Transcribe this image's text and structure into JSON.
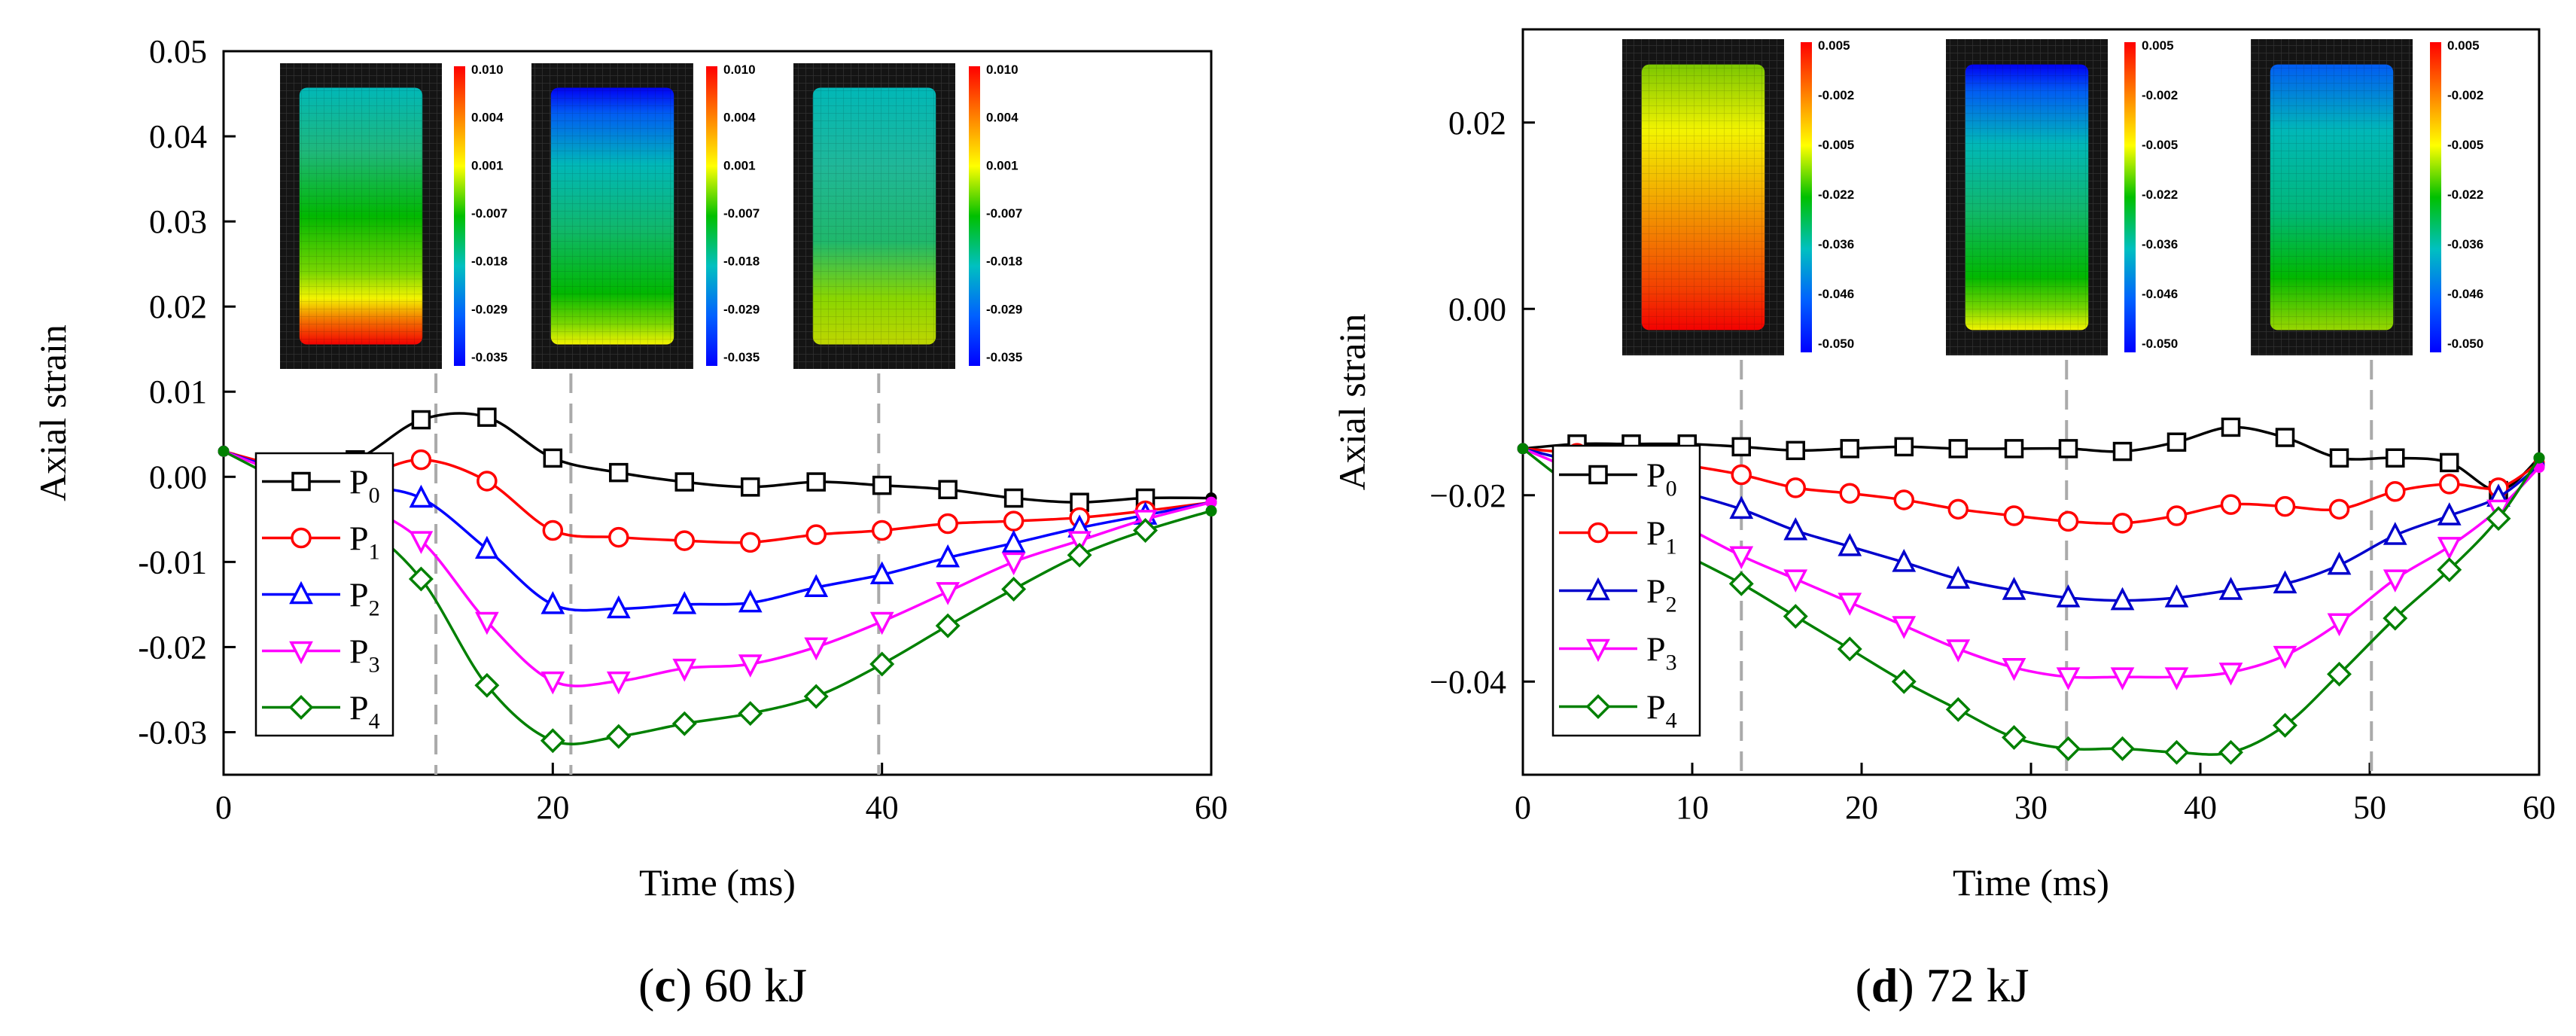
{
  "chart_data": [
    {
      "type": "line",
      "panel": "(c) 60 kJ",
      "caption_letter": "c",
      "caption_text": " 60 kJ",
      "xlabel": "Time (ms)",
      "ylabel": "Axial strain",
      "xlim": [
        0,
        60
      ],
      "ylim": [
        -0.035,
        0.05
      ],
      "xticks": [
        "0",
        "20",
        "40",
        "60"
      ],
      "xtick_values": [
        0,
        20,
        40,
        60
      ],
      "yticks": [
        "0.05",
        "0.04",
        "0.03",
        "0.02",
        "0.01",
        "0.00",
        "-0.01",
        "-0.02",
        "-0.03"
      ],
      "ytick_values": [
        0.05,
        0.04,
        0.03,
        0.02,
        0.01,
        0.0,
        -0.01,
        -0.02,
        -0.03
      ],
      "marker_lines_x": [
        12.9,
        21.1,
        39.8
      ],
      "series": [
        {
          "name": "P0",
          "base": "P",
          "sub": "0",
          "color": "#000000",
          "marker": "square",
          "x": [
            0,
            4,
            8,
            12,
            16,
            20,
            24,
            28,
            32,
            36,
            40,
            44,
            48,
            52,
            56,
            60
          ],
          "y": [
            0.003,
            0.001,
            0.002,
            0.0067,
            0.007,
            0.0022,
            0.0005,
            -0.0006,
            -0.0012,
            -0.0006,
            -0.001,
            -0.0015,
            -0.0025,
            -0.003,
            -0.0025,
            -0.0025
          ]
        },
        {
          "name": "P1",
          "base": "P",
          "sub": "1",
          "color": "#ff0000",
          "marker": "circle",
          "x": [
            0,
            4,
            8,
            12,
            16,
            20,
            24,
            28,
            32,
            36,
            40,
            44,
            48,
            52,
            56,
            60
          ],
          "y": [
            0.003,
            0.001,
            0.0,
            0.002,
            -0.0005,
            -0.0063,
            -0.0071,
            -0.0075,
            -0.0077,
            -0.0068,
            -0.0063,
            -0.0055,
            -0.0052,
            -0.0048,
            -0.004,
            -0.003
          ]
        },
        {
          "name": "P2",
          "base": "P",
          "sub": "2",
          "color": "#0000ff",
          "marker": "triangle-up",
          "x": [
            0,
            4,
            8,
            12,
            16,
            20,
            24,
            28,
            32,
            36,
            40,
            44,
            48,
            52,
            56,
            60
          ],
          "y": [
            0.003,
            0.0005,
            -0.001,
            -0.0025,
            -0.0085,
            -0.015,
            -0.0155,
            -0.015,
            -0.0148,
            -0.013,
            -0.0115,
            -0.0095,
            -0.0078,
            -0.006,
            -0.0045,
            -0.003
          ]
        },
        {
          "name": "P3",
          "base": "P",
          "sub": "3",
          "color": "#ff00ff",
          "marker": "triangle-down",
          "x": [
            0,
            4,
            8,
            12,
            16,
            20,
            24,
            28,
            32,
            36,
            40,
            44,
            48,
            52,
            56,
            60
          ],
          "y": [
            0.003,
            0.0,
            -0.003,
            -0.0075,
            -0.017,
            -0.024,
            -0.024,
            -0.0225,
            -0.022,
            -0.02,
            -0.017,
            -0.0135,
            -0.01,
            -0.0075,
            -0.005,
            -0.003
          ]
        },
        {
          "name": "P4",
          "base": "P",
          "sub": "4",
          "color": "#008000",
          "marker": "diamond",
          "x": [
            0,
            4,
            8,
            12,
            16,
            20,
            24,
            28,
            32,
            36,
            40,
            44,
            48,
            52,
            56,
            60
          ],
          "y": [
            0.003,
            -0.001,
            -0.005,
            -0.012,
            -0.0245,
            -0.031,
            -0.0305,
            -0.029,
            -0.0278,
            -0.0258,
            -0.022,
            -0.0175,
            -0.0132,
            -0.0092,
            -0.0063,
            -0.004
          ]
        }
      ],
      "contour_insets": [
        {
          "labels": [
            "0.010",
            "0.004",
            "0.001",
            "-0.007",
            "-0.018",
            "-0.029",
            "-0.035"
          ],
          "state": "tension-bottom"
        },
        {
          "labels": [
            "0.010",
            "0.004",
            "0.001",
            "-0.007",
            "-0.018",
            "-0.029",
            "-0.035"
          ],
          "state": "compressed-top"
        },
        {
          "labels": [
            "0.010",
            "0.004",
            "0.001",
            "-0.007",
            "-0.018",
            "-0.029",
            "-0.035"
          ],
          "state": "uniform"
        }
      ]
    },
    {
      "type": "line",
      "panel": "(d) 72 kJ",
      "caption_letter": "d",
      "caption_text": " 72 kJ",
      "xlabel": "Time (ms)",
      "ylabel": "Axial strain",
      "xlim": [
        0,
        60
      ],
      "ylim": [
        -0.05,
        0.03
      ],
      "xticks": [
        "0",
        "10",
        "20",
        "30",
        "40",
        "50",
        "60"
      ],
      "xtick_values": [
        0,
        10,
        20,
        30,
        40,
        50,
        60
      ],
      "yticks": [
        "0.02",
        "0.00",
        "−0.02",
        "−0.04"
      ],
      "ytick_values": [
        0.02,
        0.0,
        -0.02,
        -0.04
      ],
      "marker_lines_x": [
        12.9,
        32.1,
        50.1
      ],
      "series": [
        {
          "name": "P0",
          "base": "P",
          "sub": "0",
          "color": "#000000",
          "marker": "square",
          "x": [
            0,
            3.2,
            6.4,
            9.7,
            12.9,
            16.1,
            19.3,
            22.5,
            25.7,
            29,
            32.2,
            35.4,
            38.6,
            41.8,
            45,
            48.2,
            51.5,
            54.7,
            57.6,
            60
          ],
          "y": [
            -0.015,
            -0.0145,
            -0.0145,
            -0.0145,
            -0.0148,
            -0.0152,
            -0.015,
            -0.0148,
            -0.015,
            -0.015,
            -0.015,
            -0.0153,
            -0.0143,
            -0.0127,
            -0.0138,
            -0.016,
            -0.016,
            -0.0165,
            -0.0195,
            -0.016
          ]
        },
        {
          "name": "P1",
          "base": "P",
          "sub": "1",
          "color": "#ff0000",
          "marker": "circle",
          "x": [
            0,
            3.2,
            6.4,
            9.7,
            12.9,
            16.1,
            19.3,
            22.5,
            25.7,
            29,
            32.2,
            35.4,
            38.6,
            41.8,
            45,
            48.2,
            51.5,
            54.7,
            57.6,
            60
          ],
          "y": [
            -0.015,
            -0.0155,
            -0.016,
            -0.0168,
            -0.0178,
            -0.0192,
            -0.0198,
            -0.0205,
            -0.0215,
            -0.0222,
            -0.0228,
            -0.023,
            -0.0222,
            -0.021,
            -0.0212,
            -0.0215,
            -0.0196,
            -0.0188,
            -0.0192,
            -0.0165
          ]
        },
        {
          "name": "P2",
          "base": "P",
          "sub": "2",
          "color": "#0000cc",
          "marker": "triangle-up",
          "x": [
            0,
            3.2,
            6.4,
            9.7,
            12.9,
            16.1,
            19.3,
            22.5,
            25.7,
            29,
            32.2,
            35.4,
            38.6,
            41.8,
            45,
            48.2,
            51.5,
            54.7,
            57.6,
            60
          ],
          "y": [
            -0.015,
            -0.0165,
            -0.0182,
            -0.0198,
            -0.0215,
            -0.0238,
            -0.0255,
            -0.0272,
            -0.029,
            -0.0302,
            -0.031,
            -0.0313,
            -0.031,
            -0.0302,
            -0.0295,
            -0.0275,
            -0.0243,
            -0.0222,
            -0.0202,
            -0.0168
          ]
        },
        {
          "name": "P3",
          "base": "P",
          "sub": "3",
          "color": "#ff00ff",
          "marker": "triangle-down",
          "x": [
            0,
            3.2,
            6.4,
            9.7,
            12.9,
            16.1,
            19.3,
            22.5,
            25.7,
            29,
            32.2,
            35.4,
            38.6,
            41.8,
            45,
            48.2,
            51.5,
            54.7,
            57.6,
            60
          ],
          "y": [
            -0.015,
            -0.0175,
            -0.0205,
            -0.0235,
            -0.0265,
            -0.029,
            -0.0315,
            -0.034,
            -0.0365,
            -0.0385,
            -0.0395,
            -0.0395,
            -0.0395,
            -0.039,
            -0.0372,
            -0.0337,
            -0.029,
            -0.0255,
            -0.0215,
            -0.017
          ]
        },
        {
          "name": "P4",
          "base": "P",
          "sub": "4",
          "color": "#008000",
          "marker": "diamond",
          "x": [
            0,
            3.2,
            6.4,
            9.7,
            12.9,
            16.1,
            19.3,
            22.5,
            25.7,
            29,
            32.2,
            35.4,
            38.6,
            41.8,
            45,
            48.2,
            51.5,
            54.7,
            57.6,
            60
          ],
          "y": [
            -0.015,
            -0.0195,
            -0.0235,
            -0.0265,
            -0.0295,
            -0.033,
            -0.0365,
            -0.04,
            -0.043,
            -0.046,
            -0.0472,
            -0.0472,
            -0.0476,
            -0.0476,
            -0.0447,
            -0.0392,
            -0.0332,
            -0.028,
            -0.0225,
            -0.016
          ]
        }
      ],
      "contour_insets": [
        {
          "labels": [
            "0.005",
            "-0.002",
            "-0.005",
            "-0.022",
            "-0.036",
            "-0.046",
            "-0.050"
          ],
          "state": "near-zero"
        },
        {
          "labels": [
            "0.005",
            "-0.002",
            "-0.005",
            "-0.022",
            "-0.036",
            "-0.046",
            "-0.050"
          ],
          "state": "compressed-top"
        },
        {
          "labels": [
            "0.005",
            "-0.002",
            "-0.005",
            "-0.022",
            "-0.036",
            "-0.046",
            "-0.050"
          ],
          "state": "partial"
        }
      ]
    }
  ],
  "colors": {
    "dashed_marker": "#aaaaaa",
    "colormap": [
      "#ff0000",
      "#ff8000",
      "#ffff00",
      "#00c000",
      "#00c0c0",
      "#0060ff",
      "#0000ff"
    ],
    "inset_background": "#141414"
  }
}
